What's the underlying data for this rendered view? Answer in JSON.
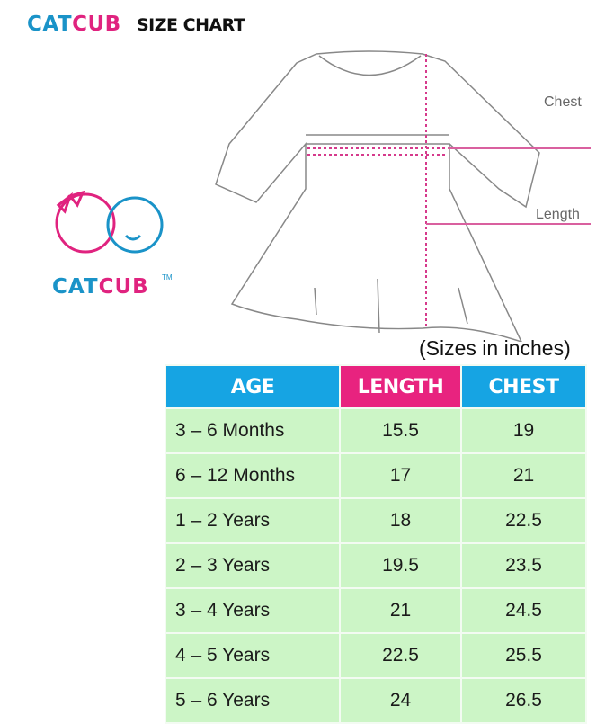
{
  "header": {
    "brand_part1": "CAT",
    "brand_part2": "CUB",
    "title": "SIZE CHART"
  },
  "logo": {
    "brand_part1": "CAT",
    "brand_part2": "CUB",
    "trademark": "TM"
  },
  "diagram": {
    "chest_label": "Chest",
    "length_label": "Length"
  },
  "units_note": "(Sizes in inches)",
  "colors": {
    "blue": "#16a4e3",
    "pink": "#e8237f",
    "row_green": "#ccf5c6"
  },
  "table": {
    "headers": [
      "AGE",
      "LENGTH",
      "CHEST"
    ],
    "rows": [
      [
        "3 – 6 Months",
        "15.5",
        "19"
      ],
      [
        "6 – 12 Months",
        "17",
        "21"
      ],
      [
        "1 – 2 Years",
        "18",
        "22.5"
      ],
      [
        "2 – 3 Years",
        "19.5",
        "23.5"
      ],
      [
        "3 – 4 Years",
        "21",
        "24.5"
      ],
      [
        "4 – 5 Years",
        "22.5",
        "25.5"
      ],
      [
        "5 – 6 Years",
        "24",
        "26.5"
      ]
    ]
  }
}
